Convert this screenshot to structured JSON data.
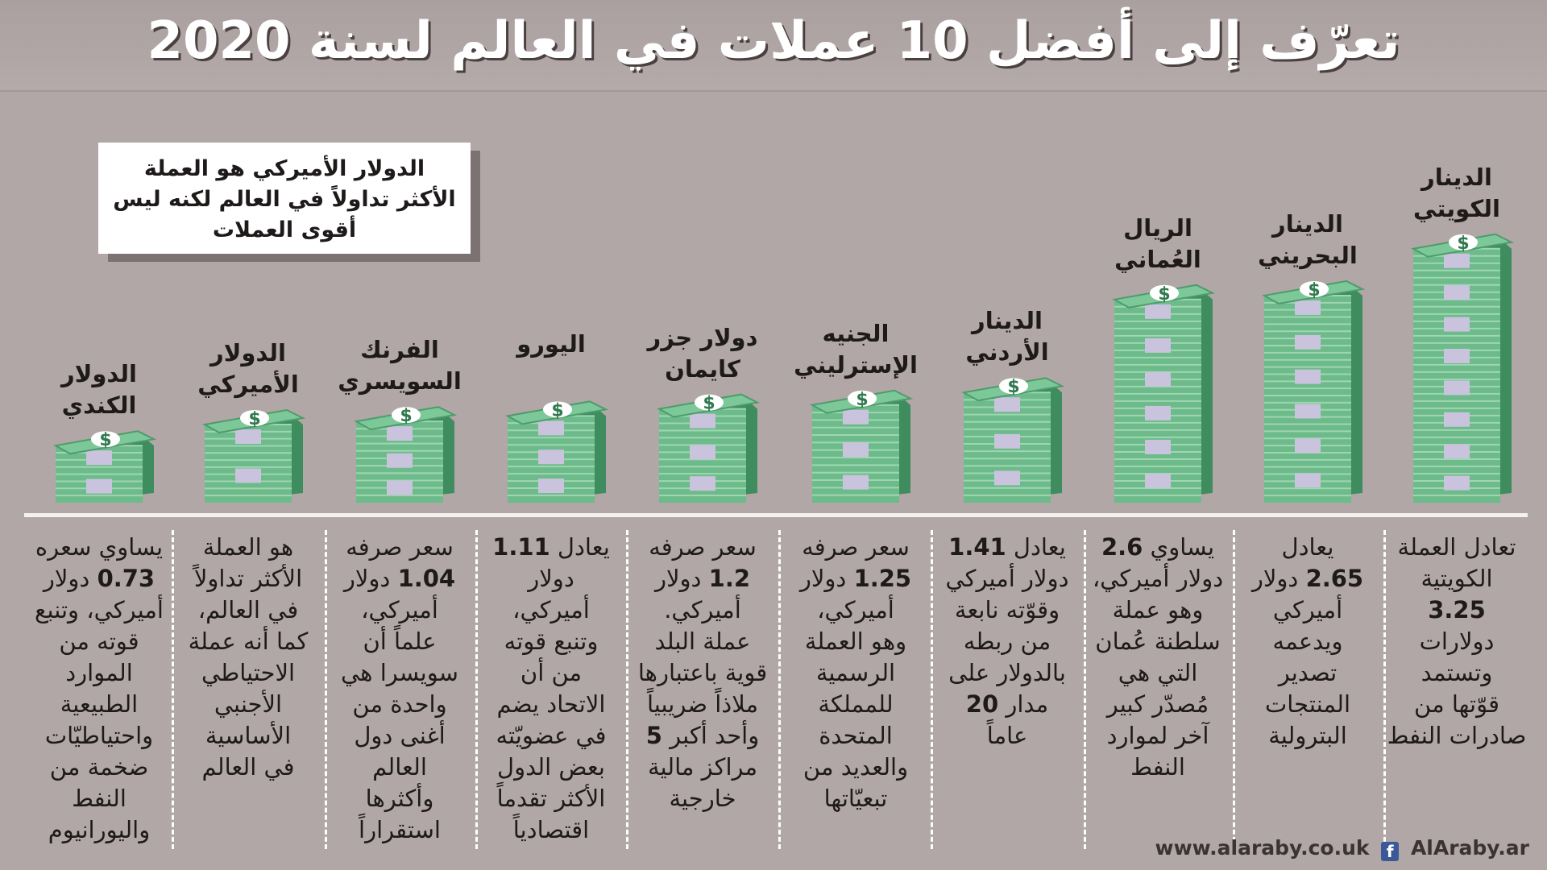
{
  "title": "تعرّف إلى أفضل 10 عملات في العالم لسنة 2020",
  "note": "الدولار الأميركي هو العملة الأكثر تداولاً في العالم لكنه ليس أقوى العملات",
  "footer": {
    "website": "www.alaraby.co.uk",
    "social": "AlAraby.ar",
    "social_icon": "facebook-icon"
  },
  "colors": {
    "background": "#b1a7a6",
    "bill_green": "#6dbb8a",
    "bill_dark": "#3f8d5e",
    "bill_band": "#c9c3dd",
    "title_text": "#ffffff"
  },
  "chart_data": {
    "type": "bar",
    "unit": "USD",
    "categories": [
      "الدينار الكويتي",
      "الدينار البحريني",
      "الريال العُماني",
      "الدينار الأردني",
      "الجنيه الإسترليني",
      "دولار جزر كايمان",
      "اليورو",
      "الفرنك السويسري",
      "الدولار الأميركي",
      "الدولار الكندي"
    ],
    "values": [
      3.25,
      2.65,
      2.6,
      1.41,
      1.25,
      1.2,
      1.11,
      1.04,
      1.0,
      0.73
    ],
    "items": [
      {
        "name": "الدينار الكويتي",
        "value": 3.25,
        "desc": [
          [
            "تعادل العملة"
          ],
          [
            "الكويتية"
          ],
          [
            "",
            "3.25",
            ""
          ],
          [
            "دولارات"
          ],
          [
            "وتستمد"
          ],
          [
            "قوّتها من"
          ],
          [
            "صادرات النفط"
          ]
        ]
      },
      {
        "name": "الدينار البحريني",
        "value": 2.65,
        "desc": [
          [
            "يعادل"
          ],
          [
            "",
            "2.65",
            " دولار"
          ],
          [
            "أميركي"
          ],
          [
            "ويدعمه"
          ],
          [
            "تصدير"
          ],
          [
            "المنتجات"
          ],
          [
            "البترولية"
          ]
        ]
      },
      {
        "name": "الريال العُماني",
        "value": 2.6,
        "desc": [
          [
            "يساوي ",
            "2.6",
            ""
          ],
          [
            "دولار أميركي،"
          ],
          [
            "وهو عملة"
          ],
          [
            "سلطنة عُمان"
          ],
          [
            "التي هي"
          ],
          [
            "مُصدّر كبير"
          ],
          [
            "آخر لموارد"
          ],
          [
            "النفط"
          ]
        ]
      },
      {
        "name": "الدينار الأردني",
        "value": 1.41,
        "desc": [
          [
            "يعادل ",
            "1.41",
            ""
          ],
          [
            "دولار أميركي"
          ],
          [
            "وقوّته نابعة"
          ],
          [
            "من ربطه"
          ],
          [
            "بالدولار على"
          ],
          [
            "مدار ",
            "20",
            ""
          ],
          [
            "عاماً"
          ]
        ]
      },
      {
        "name": "الجنيه الإسترليني",
        "value": 1.25,
        "desc": [
          [
            "سعر صرفه"
          ],
          [
            "",
            "1.25",
            " دولار"
          ],
          [
            "أميركي،"
          ],
          [
            "وهو العملة"
          ],
          [
            "الرسمية"
          ],
          [
            "للمملكة"
          ],
          [
            "المتحدة"
          ],
          [
            "والعديد من"
          ],
          [
            "تبعيّاتها"
          ]
        ]
      },
      {
        "name": "دولار جزر كايمان",
        "value": 1.2,
        "desc": [
          [
            "سعر صرفه"
          ],
          [
            "",
            "1.2",
            " دولار"
          ],
          [
            "أميركي."
          ],
          [
            "عملة البلد"
          ],
          [
            "قوية باعتبارها"
          ],
          [
            "ملاذاً ضريبياً"
          ],
          [
            "وأحد أكبر ",
            "5",
            ""
          ],
          [
            "مراكز مالية"
          ],
          [
            "خارجية"
          ]
        ]
      },
      {
        "name": "اليورو",
        "value": 1.11,
        "desc": [
          [
            "يعادل ",
            "1.11",
            ""
          ],
          [
            "دولار"
          ],
          [
            "أميركي،"
          ],
          [
            "وتنبع قوته"
          ],
          [
            "من أن"
          ],
          [
            "الاتحاد يضم"
          ],
          [
            "في عضويّته"
          ],
          [
            "بعض الدول"
          ],
          [
            "الأكثر تقدماً"
          ],
          [
            "اقتصادياً"
          ]
        ]
      },
      {
        "name": "الفرنك السويسري",
        "value": 1.04,
        "desc": [
          [
            "سعر صرفه"
          ],
          [
            "",
            "1.04",
            " دولار"
          ],
          [
            "أميركي،"
          ],
          [
            "علماً أن"
          ],
          [
            "سويسرا هي"
          ],
          [
            "واحدة من"
          ],
          [
            "أغنى دول"
          ],
          [
            "العالم"
          ],
          [
            "وأكثرها"
          ],
          [
            "استقراراً"
          ]
        ]
      },
      {
        "name": "الدولار الأميركي",
        "value": 1.0,
        "desc": [
          [
            "هو العملة"
          ],
          [
            "الأكثر تداولاً"
          ],
          [
            "في العالم،"
          ],
          [
            "كما أنه عملة"
          ],
          [
            "الاحتياطي"
          ],
          [
            "الأجنبي"
          ],
          [
            "الأساسية"
          ],
          [
            "في العالم"
          ]
        ]
      },
      {
        "name": "الدولار الكندي",
        "value": 0.73,
        "desc": [
          [
            "يساوي سعره"
          ],
          [
            "",
            "0.73",
            " دولار"
          ],
          [
            "أميركي، وتنبع"
          ],
          [
            "قوته من"
          ],
          [
            "الموارد"
          ],
          [
            "الطبيعية"
          ],
          [
            "واحتياطيّات"
          ],
          [
            "ضخمة من"
          ],
          [
            "النفط"
          ],
          [
            "واليورانيوم"
          ]
        ]
      }
    ]
  }
}
